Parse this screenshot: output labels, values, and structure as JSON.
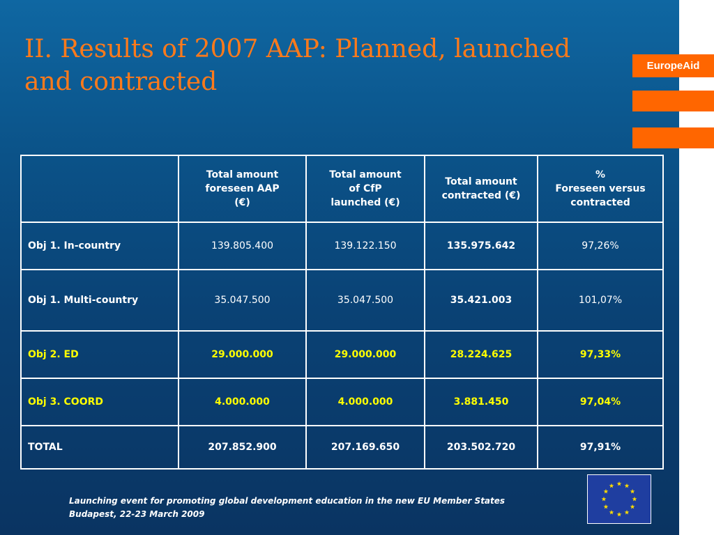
{
  "title": "II. Results of 2007 AAP: Planned, launched and contracted",
  "brand": {
    "label": "EuropeAid"
  },
  "table": {
    "headers": [
      "",
      "Total amount\nforeseen AAP\n(€)",
      "Total amount\nof CfP\nlaunched (€)",
      "Total amount\ncontracted (€)",
      "%\nForeseen versus\ncontracted"
    ],
    "rows": [
      {
        "label": "Obj 1. In-country",
        "foreseen": "139.805.400",
        "launched": "139.122.150",
        "contracted": "135.975.642",
        "percent": "97,26%"
      },
      {
        "label": "Obj 1. Multi-country",
        "foreseen": "35.047.500",
        "launched": "35.047.500",
        "contracted": "35.421.003",
        "percent": "101,07%"
      },
      {
        "label": "Obj 2. ED",
        "foreseen": "29.000.000",
        "launched": "29.000.000",
        "contracted": "28.224.625",
        "percent": "97,33%"
      },
      {
        "label": "Obj 3. COORD",
        "foreseen": "4.000.000",
        "launched": "4.000.000",
        "contracted": "3.881.450",
        "percent": "97,04%"
      },
      {
        "label": "TOTAL",
        "foreseen": "207.852.900",
        "launched": "207.169.650",
        "contracted": "203.502.720",
        "percent": "97,91%"
      }
    ]
  },
  "footer": {
    "line1": "Launching event for promoting global development education in the new EU Member States",
    "line2": "Budapest, 22-23 March 2009"
  },
  "colors": {
    "accent": "#ff6600",
    "title": "#ff7a1a",
    "highlight_text": "#ffff00",
    "background": "#0b5389",
    "flag_blue": "#1f3ea0",
    "flag_star": "#ffdd00"
  },
  "icons": {
    "flag": "eu-flag-icon"
  }
}
